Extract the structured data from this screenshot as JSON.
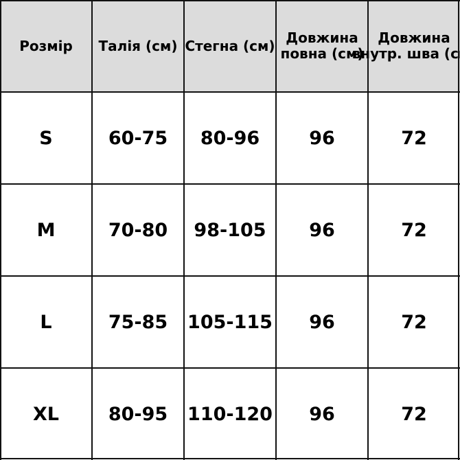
{
  "table": {
    "headers": [
      [
        "Розмір"
      ],
      [
        "Талія (см)"
      ],
      [
        "Стегна (см)"
      ],
      [
        "Довжина",
        "повна (см)"
      ],
      [
        "Довжина",
        "внутр. шва (см)"
      ]
    ],
    "rows": [
      [
        "S",
        "60-75",
        "80-96",
        "96",
        "72"
      ],
      [
        "M",
        "70-80",
        "98-105",
        "96",
        "72"
      ],
      [
        "L",
        "75-85",
        "105-115",
        "96",
        "72"
      ],
      [
        "XL",
        "80-95",
        "110-120",
        "96",
        "72"
      ]
    ],
    "header_bg": "#dcdcdc",
    "border_color": "#111111"
  }
}
